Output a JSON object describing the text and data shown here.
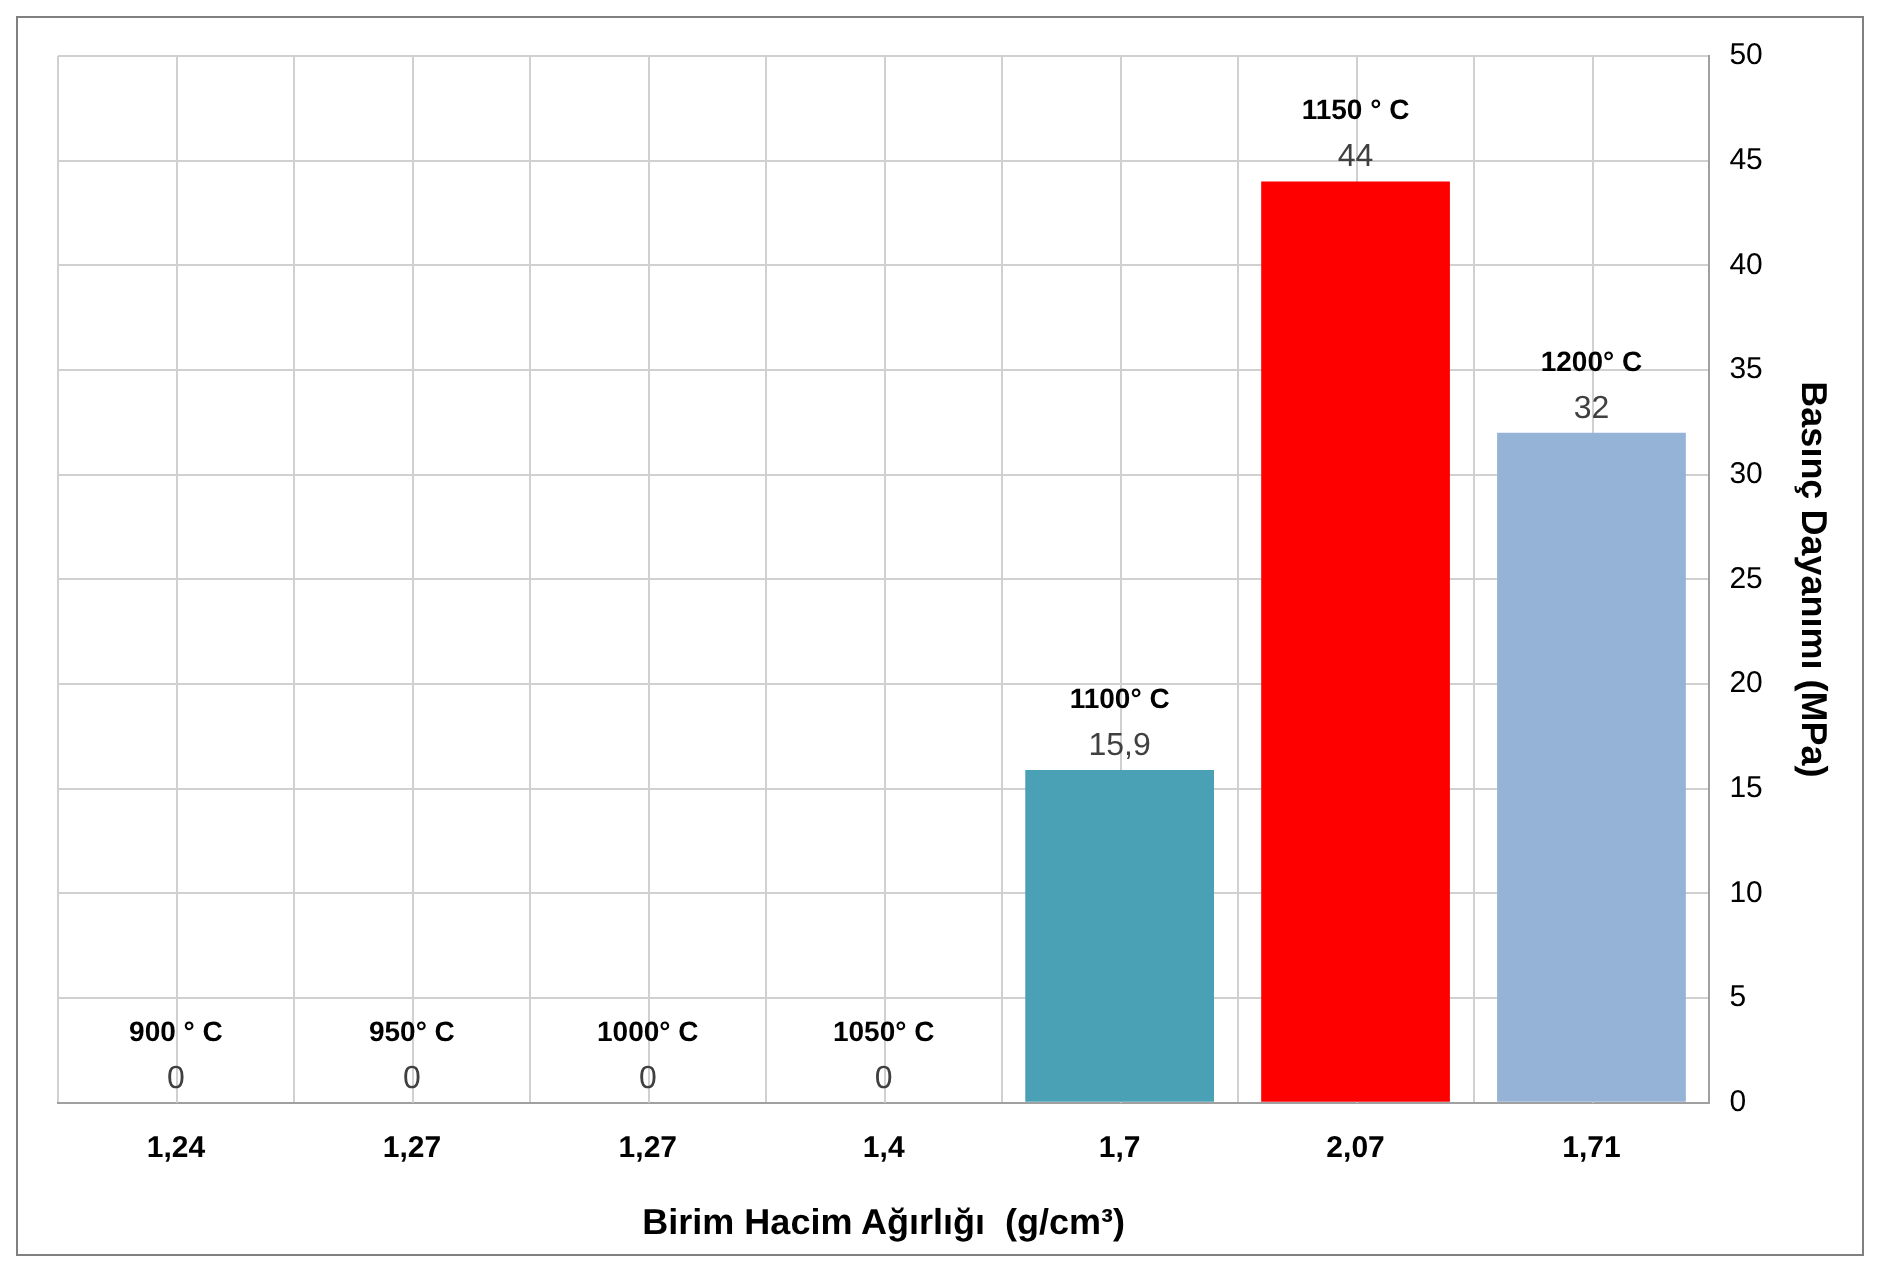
{
  "chart_data": {
    "type": "bar",
    "xlabel": "Birim Hacim Ağırlığı  (g/cm³)",
    "ylabel": "Basınç Dayanımı (MPa)",
    "categories": [
      "1,24",
      "1,27",
      "1,27",
      "1,4",
      "1,7",
      "2,07",
      "1,71"
    ],
    "values": [
      0,
      0,
      0,
      0,
      15.9,
      44,
      32
    ],
    "colors": [
      "#4aa0b5",
      "#4aa0b5",
      "#4aa0b5",
      "#4aa0b5",
      "#4aa0b5",
      "#ff0000",
      "#95b3d7"
    ],
    "value_labels": [
      "0",
      "0",
      "0",
      "0",
      "15,9",
      "44",
      "32"
    ],
    "annotations": [
      "900 ° C",
      "950° C",
      "1000° C",
      "1050° C",
      "1100° C",
      "1150 ° C",
      "1200° C"
    ],
    "ylim": [
      0,
      50
    ],
    "yticks": [
      0,
      5,
      10,
      15,
      20,
      25,
      30,
      35,
      40,
      45,
      50
    ],
    "grid": true,
    "legend": false
  }
}
